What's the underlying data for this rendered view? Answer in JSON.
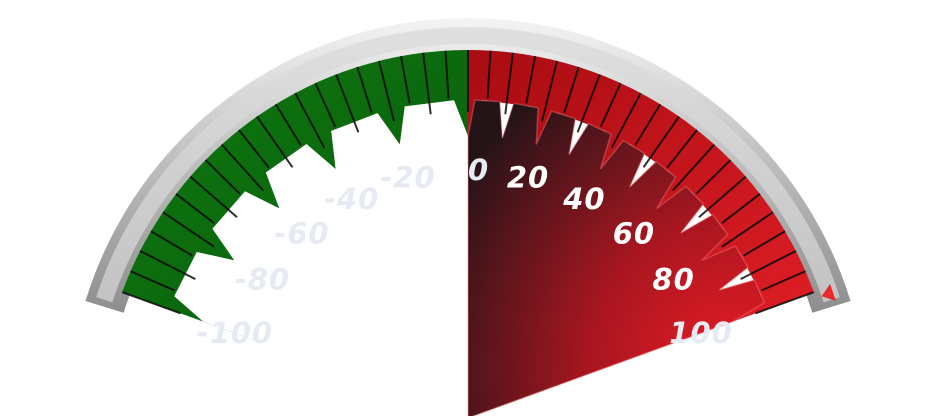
{
  "gauge": {
    "min": -100,
    "max": 100,
    "value": 100,
    "labels": [
      "-100",
      "-80",
      "-60",
      "-40",
      "-20",
      "0",
      "20",
      "40",
      "60",
      "80",
      "100"
    ],
    "colors": {
      "negative_zone": "#0d6a0f",
      "positive_zone": "#c0121a",
      "rim": "#c9c9c9",
      "fill_dark": "#2a1618",
      "fill_bright": "#e81c24",
      "marker": "#e82a2a",
      "label_on_red": "#ffffff",
      "label_faded": "#e6ebf3"
    },
    "icons": {
      "marker": "triangle-marker-icon"
    }
  }
}
